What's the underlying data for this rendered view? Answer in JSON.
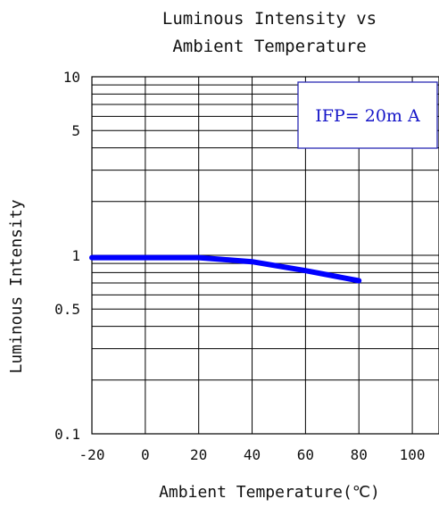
{
  "chart_data": {
    "type": "line",
    "title_lines": [
      "Luminous Intensity vs",
      "Ambient Temperature"
    ],
    "xlabel": "Ambient Temperature(℃)",
    "ylabel": "Luminous Intensity",
    "x_ticks": [
      -20,
      0,
      20,
      40,
      60,
      80,
      100
    ],
    "x_tick_labels": [
      "-20",
      "0",
      "20",
      "40",
      "60",
      "80",
      "100"
    ],
    "y_tick_values": [
      0.1,
      0.5,
      1,
      5,
      10
    ],
    "y_tick_labels": [
      "0.1",
      "0.5",
      "1",
      "5",
      "10"
    ],
    "xlim": [
      -20,
      110
    ],
    "ylim": [
      0.1,
      10
    ],
    "y_scale": "log",
    "grid": true,
    "legend": {
      "text": "IFP= 20m A",
      "placement": "top-right"
    },
    "colors": {
      "series": "#0000ff",
      "grid": "#000000",
      "legend_border": "#2a2ab4",
      "legend_text": "#1515c8"
    },
    "series": [
      {
        "x": [
          -20,
          0,
          20,
          40,
          60,
          80
        ],
        "y": [
          0.97,
          0.97,
          0.97,
          0.92,
          0.82,
          0.72
        ]
      }
    ]
  }
}
